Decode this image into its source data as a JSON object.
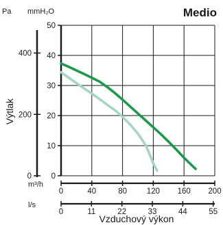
{
  "chart_data": {
    "type": "line",
    "title": "Medio",
    "ylabel": "Výtlak",
    "xlabel": "Vzduchový výkon",
    "y_units": {
      "left_outer": "Pa",
      "left_inner": "mmH₂O"
    },
    "x_units": {
      "primary": "m³/h",
      "secondary": "l/s"
    },
    "x_primary": {
      "lim": [
        0,
        200
      ],
      "ticks": [
        "0",
        "40",
        "80",
        "120",
        "160",
        "200"
      ]
    },
    "x_secondary": {
      "ticks": [
        "0",
        "11",
        "22",
        "33",
        "44",
        "55"
      ]
    },
    "y_inner": {
      "lim": [
        0,
        50
      ],
      "ticks": [
        "0",
        "10",
        "20",
        "30",
        "40",
        "50"
      ]
    },
    "y_outer": {
      "ticks": [
        "0",
        "200",
        "400"
      ]
    },
    "grid": true,
    "series": [
      {
        "color": "#1b9a4a",
        "x": [
          0,
          10,
          20,
          30,
          40,
          50,
          60,
          70,
          80,
          90,
          100,
          110,
          120,
          130,
          140,
          150,
          160,
          170,
          175
        ],
        "y": [
          37.3,
          36.2,
          35.0,
          33.8,
          32.6,
          31.3,
          29.5,
          27.5,
          25.3,
          23.0,
          20.7,
          18.4,
          16.1,
          13.8,
          11.3,
          8.7,
          6.0,
          3.5,
          2.3
        ]
      },
      {
        "color": "#a6d5c3",
        "x": [
          0,
          10,
          20,
          30,
          40,
          50,
          60,
          70,
          80,
          90,
          100,
          110,
          115,
          120,
          125
        ],
        "y": [
          34.4,
          32.6,
          30.8,
          29.0,
          27.3,
          25.5,
          23.6,
          21.8,
          19.6,
          17.0,
          14.0,
          10.2,
          7.3,
          4.1,
          1.7
        ]
      }
    ]
  }
}
